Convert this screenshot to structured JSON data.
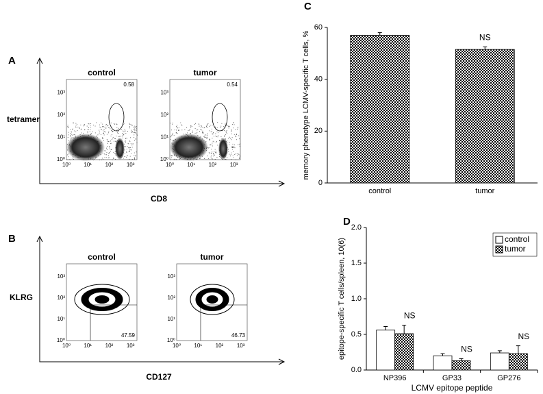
{
  "flow_panels": [
    {
      "letter": "A",
      "y_label": "tetramer",
      "x_label": "CD8",
      "kind": "tetramer",
      "plots": [
        {
          "title": "control",
          "value": "0.58"
        },
        {
          "title": "tumor",
          "value": "0.54"
        }
      ]
    },
    {
      "letter": "B",
      "y_label": "KLRG",
      "x_label": "CD127",
      "kind": "quadrant",
      "plots": [
        {
          "title": "control",
          "value": "47.59"
        },
        {
          "title": "tumor",
          "value": "46.73"
        }
      ]
    }
  ],
  "log_ticks": [
    "10⁰",
    "10¹",
    "10²",
    "10³"
  ],
  "chart_data": [
    {
      "type": "bar",
      "panel": "C",
      "y_label": "memory phenotype LCMV-specific T cells, %",
      "categories": [
        "control",
        "tumor"
      ],
      "values": [
        57,
        51.5
      ],
      "errors": [
        1,
        1
      ],
      "annotations": [
        null,
        "NS"
      ],
      "color": "#000000",
      "ylim": [
        0,
        60
      ],
      "yticks": [
        0,
        20,
        40,
        60
      ]
    },
    {
      "type": "bar",
      "panel": "D",
      "y_label": "epitope-specific T cells/spleen, 10(6)",
      "x_label": "LCMV epitope peptide",
      "categories": [
        "NP396",
        "GP33",
        "GP276"
      ],
      "series": [
        {
          "name": "control",
          "color": "#ffffff",
          "values": [
            0.56,
            0.2,
            0.24
          ],
          "errors": [
            0.05,
            0.03,
            0.03
          ]
        },
        {
          "name": "tumor",
          "color": "#000000",
          "values": [
            0.51,
            0.13,
            0.23
          ],
          "errors": [
            0.12,
            0.03,
            0.11
          ],
          "annotations": [
            "NS",
            "NS",
            "NS"
          ]
        }
      ],
      "legend": "top-right",
      "ylim": [
        0,
        2
      ],
      "yticks": [
        {
          "value": 0,
          "label": "0.0"
        },
        {
          "value": 0.5,
          "label": "0.5"
        },
        {
          "value": 1,
          "label": "1.0"
        },
        {
          "value": 1.5,
          "label": "1.5"
        },
        {
          "value": 2,
          "label": "2.0"
        }
      ]
    }
  ]
}
